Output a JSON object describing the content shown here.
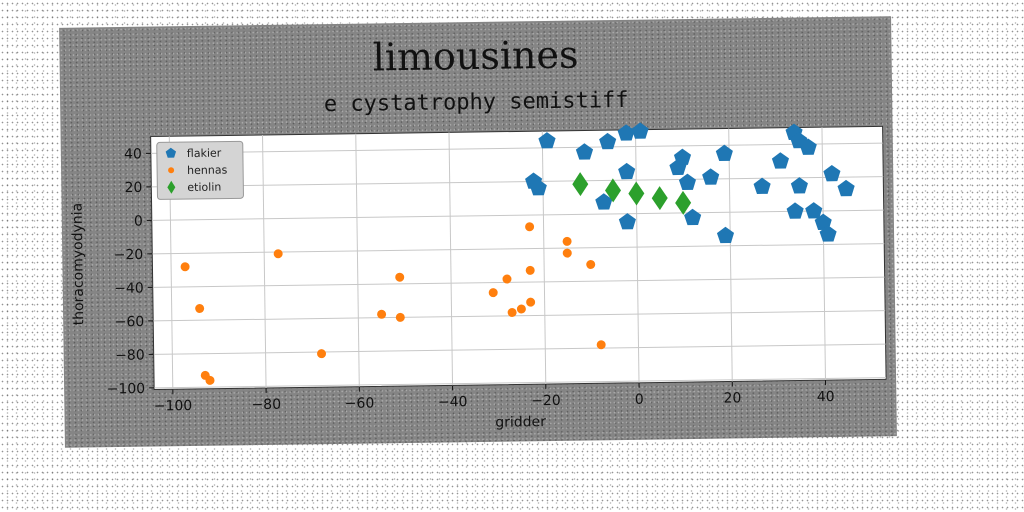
{
  "title": "limousines",
  "subtitle": "e cystatrophy semistiff",
  "chart_data": {
    "type": "scatter",
    "title": "limousines",
    "subtitle": "e cystatrophy semistiff",
    "xlabel": "gridder",
    "ylabel": "thoracomyodynia",
    "xlim": [
      -104,
      53
    ],
    "ylim": [
      -101,
      50
    ],
    "xticks": [
      -100,
      -80,
      -60,
      -40,
      -20,
      0,
      20,
      40
    ],
    "yticks": [
      -100,
      -80,
      -60,
      -40,
      -20,
      0,
      20,
      40
    ],
    "grid": true,
    "legend_position": "top-left",
    "series": [
      {
        "name": "flakier",
        "marker": "pentagon",
        "color": "#1f77b4",
        "points": [
          [
            -19,
            44
          ],
          [
            -11,
            37
          ],
          [
            -6,
            43
          ],
          [
            -2,
            48
          ],
          [
            1,
            49
          ],
          [
            -2,
            25
          ],
          [
            -7,
            7
          ],
          [
            -22,
            20
          ],
          [
            -21,
            16
          ],
          [
            -2,
            -5
          ],
          [
            9,
            27
          ],
          [
            10,
            33
          ],
          [
            11,
            18
          ],
          [
            12,
            -3
          ],
          [
            16,
            21
          ],
          [
            19,
            35
          ],
          [
            19,
            -14
          ],
          [
            27,
            15
          ],
          [
            31,
            30
          ],
          [
            34,
            47
          ],
          [
            35,
            42
          ],
          [
            37,
            38
          ],
          [
            35,
            15
          ],
          [
            34,
            0
          ],
          [
            38,
            0
          ],
          [
            40,
            -7
          ],
          [
            41,
            -14
          ],
          [
            42,
            22
          ],
          [
            45,
            13
          ]
        ]
      },
      {
        "name": "hennas",
        "marker": "circle",
        "color": "#ff7f0e",
        "points": [
          [
            -97,
            -28
          ],
          [
            -94,
            -53
          ],
          [
            -93,
            -93
          ],
          [
            -92,
            -96
          ],
          [
            -77,
            -21
          ],
          [
            -68,
            -81
          ],
          [
            -55,
            -58
          ],
          [
            -51,
            -60
          ],
          [
            -51,
            -36
          ],
          [
            -31,
            -46
          ],
          [
            -28,
            -38
          ],
          [
            -27,
            -58
          ],
          [
            -25,
            -56
          ],
          [
            -23,
            -7
          ],
          [
            -23,
            -33
          ],
          [
            -23,
            -52
          ],
          [
            -15,
            -16
          ],
          [
            -15,
            -23
          ],
          [
            -10,
            -30
          ],
          [
            -8,
            -78
          ]
        ]
      },
      {
        "name": "etiolin",
        "marker": "diamond",
        "color": "#2ca02c",
        "points": [
          [
            -12,
            18
          ],
          [
            -5,
            14
          ],
          [
            0,
            12
          ],
          [
            5,
            9
          ],
          [
            10,
            6
          ]
        ]
      }
    ]
  }
}
